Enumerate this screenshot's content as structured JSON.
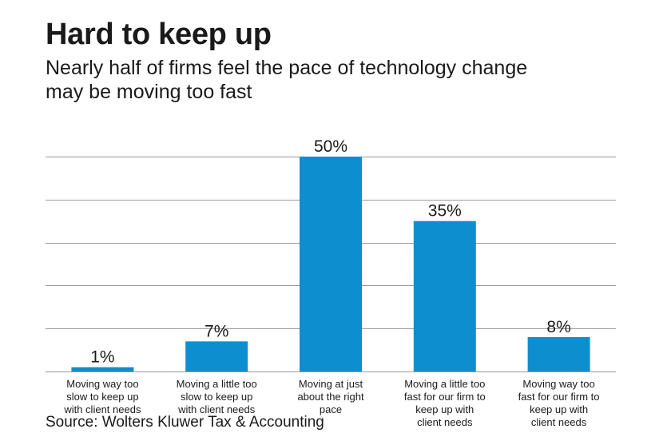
{
  "chart_data": {
    "type": "bar",
    "title": "Hard to keep up",
    "subtitle": "Nearly half of firms feel the pace of technology change may be moving too fast",
    "subtitle_lines": [
      "Nearly half of firms feel the pace of technology change",
      "may be moving too fast"
    ],
    "categories": [
      [
        "Moving way too",
        "slow to keep up",
        "with client needs"
      ],
      [
        "Moving a little too",
        "slow to keep up",
        "with client needs"
      ],
      [
        "Moving at just",
        "about the right",
        "pace"
      ],
      [
        "Moving a little too",
        "fast for our firm to",
        "keep up with",
        "client needs"
      ],
      [
        "Moving way too",
        "fast for our firm to",
        "keep up with",
        "client needs"
      ]
    ],
    "values": [
      1,
      7,
      50,
      35,
      8
    ],
    "data_labels": [
      "1%",
      "7%",
      "50%",
      "35%",
      "8%"
    ],
    "ylim": [
      0,
      50
    ],
    "gridlines": [
      0,
      10,
      20,
      30,
      40,
      50
    ],
    "xlabel": "",
    "ylabel": "",
    "source": "Source: Wolters Kluwer Tax & Accounting",
    "colors": {
      "bar": "#0d8ecf",
      "grid": "#9a9a9a",
      "text": "#1a1a1a"
    }
  }
}
